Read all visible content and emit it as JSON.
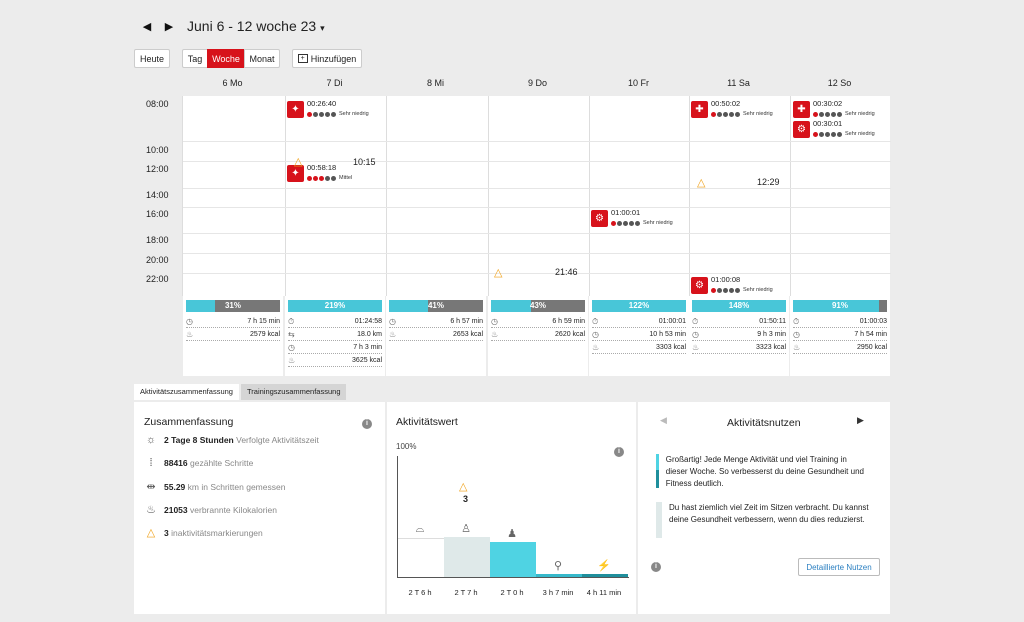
{
  "header": {
    "prev": "◀",
    "next": "▶",
    "range": "Juni 6 - 12 woche 23",
    "caret": "▾"
  },
  "toolbar": {
    "today": "Heute",
    "day": "Tag",
    "week": "Woche",
    "month": "Monat",
    "add": "Hinzufügen"
  },
  "days": [
    "6 Mo",
    "7 Di",
    "8 Mi",
    "9 Do",
    "10 Fr",
    "11 Sa",
    "12 So"
  ],
  "times": [
    "08:00",
    "10:00",
    "12:00",
    "14:00",
    "16:00",
    "18:00",
    "20:00",
    "22:00"
  ],
  "events": [
    {
      "time": "00:26:40",
      "level": "Sehr niedrig",
      "icon": "run-icon"
    },
    {
      "time": "00:58:18",
      "level": "Mittel",
      "icon": "run-icon"
    },
    {
      "time": "01:00:01",
      "level": "Sehr niedrig",
      "icon": "cycle-icon"
    },
    {
      "time": "00:50:02",
      "level": "Sehr niedrig",
      "icon": "strength-icon"
    },
    {
      "time": "01:00:08",
      "level": "Sehr niedrig",
      "icon": "cycle-icon"
    },
    {
      "time": "00:30:02",
      "level": "Sehr niedrig",
      "icon": "strength-icon"
    },
    {
      "time": "00:30:01",
      "level": "Sehr niedrig",
      "icon": "cycle-icon"
    }
  ],
  "inactivity": [
    {
      "time": "10:15"
    },
    {
      "time": "21:46"
    },
    {
      "time": "12:29"
    }
  ],
  "day_summaries": [
    {
      "pct": "31%",
      "fill": 0.31,
      "rows": [
        {
          "icon": "clock-icon",
          "value": "7 h 15 min"
        },
        {
          "icon": "flame-icon",
          "value": "2579 kcal"
        }
      ]
    },
    {
      "pct": "219%",
      "fill": 1.0,
      "rows": [
        {
          "icon": "stopwatch-icon",
          "value": "01:24:58"
        },
        {
          "icon": "distance-icon",
          "value": "18.0 km"
        },
        {
          "icon": "clock-icon",
          "value": "7 h 3 min"
        },
        {
          "icon": "flame-icon",
          "value": "3625 kcal"
        }
      ]
    },
    {
      "pct": "41%",
      "fill": 0.41,
      "rows": [
        {
          "icon": "clock-icon",
          "value": "6 h 57 min"
        },
        {
          "icon": "flame-icon",
          "value": "2653 kcal"
        }
      ]
    },
    {
      "pct": "43%",
      "fill": 0.43,
      "rows": [
        {
          "icon": "clock-icon",
          "value": "6 h 59 min"
        },
        {
          "icon": "flame-icon",
          "value": "2620 kcal"
        }
      ]
    },
    {
      "pct": "122%",
      "fill": 1.0,
      "rows": [
        {
          "icon": "stopwatch-icon",
          "value": "01:00:01"
        },
        {
          "icon": "clock-icon",
          "value": "10 h 53 min"
        },
        {
          "icon": "flame-icon",
          "value": "3303 kcal"
        }
      ]
    },
    {
      "pct": "148%",
      "fill": 1.0,
      "rows": [
        {
          "icon": "stopwatch-icon",
          "value": "01:50:11"
        },
        {
          "icon": "clock-icon",
          "value": "9 h 3 min"
        },
        {
          "icon": "flame-icon",
          "value": "3323 kcal"
        }
      ]
    },
    {
      "pct": "91%",
      "fill": 0.91,
      "rows": [
        {
          "icon": "stopwatch-icon",
          "value": "01:00:03"
        },
        {
          "icon": "clock-icon",
          "value": "7 h 54 min"
        },
        {
          "icon": "flame-icon",
          "value": "2950 kcal"
        }
      ]
    }
  ],
  "tabs": {
    "activity": "Aktivitätszusammenfassung",
    "training": "Trainingszusammenfassung"
  },
  "summary": {
    "title": "Zusammenfassung",
    "info": "i",
    "rows": [
      {
        "icon": "activity-icon",
        "bold": "2 Tage 8 Stunden",
        "label": "Verfolgte Aktivitätszeit"
      },
      {
        "icon": "steps-icon",
        "bold": "88416",
        "label": "gezählte Schritte"
      },
      {
        "icon": "ruler-icon",
        "bold": "55.29",
        "label": "km in Schritten gemessen"
      },
      {
        "icon": "flame-icon",
        "bold": "21053",
        "label": "verbrannte Kilokalorien"
      },
      {
        "icon": "warning-icon",
        "bold": "3",
        "label": "inaktivitätsmarkierungen"
      }
    ]
  },
  "activity_chart": {
    "title": "Aktivitätswert",
    "ymax_label": "100%",
    "marker_count": "3",
    "info": "i"
  },
  "chart_data": {
    "type": "bar",
    "title": "Aktivitätswert",
    "categories": [
      "2 T 6 h",
      "2 T 7 h",
      "2 T 0 h",
      "3 h 7 min",
      "4 h 11 min"
    ],
    "values": [
      2.26,
      2.29,
      2.0,
      0.13,
      0.17
    ],
    "levels": [
      "lying-icon",
      "sitting-icon",
      "standing-icon",
      "walking-icon",
      "running-icon"
    ],
    "colors": [
      "#ffffff",
      "#dfe9e9",
      "#4fd3e3",
      "#36b9cb",
      "#1f8f9c"
    ],
    "ylabel": "",
    "ylim": [
      0,
      7
    ]
  },
  "benefit": {
    "title": "Aktivitätsnutzen",
    "prev": "◀",
    "next": "▶",
    "msg1": "Großartig! Jede Menge Aktivität und viel Training in dieser Woche. So verbesserst du deine Gesundheit und Fitness deutlich.",
    "msg2": "Du hast ziemlich viel Zeit im Sitzen verbracht. Du kannst deine Gesundheit verbessern, wenn du dies reduzierst.",
    "details": "Detaillierte Nutzen",
    "info": "i",
    "colors": {
      "msg1a": "#4fd3e3",
      "msg1b": "#1f8f9c",
      "msg2": "#dfe9e9"
    }
  }
}
